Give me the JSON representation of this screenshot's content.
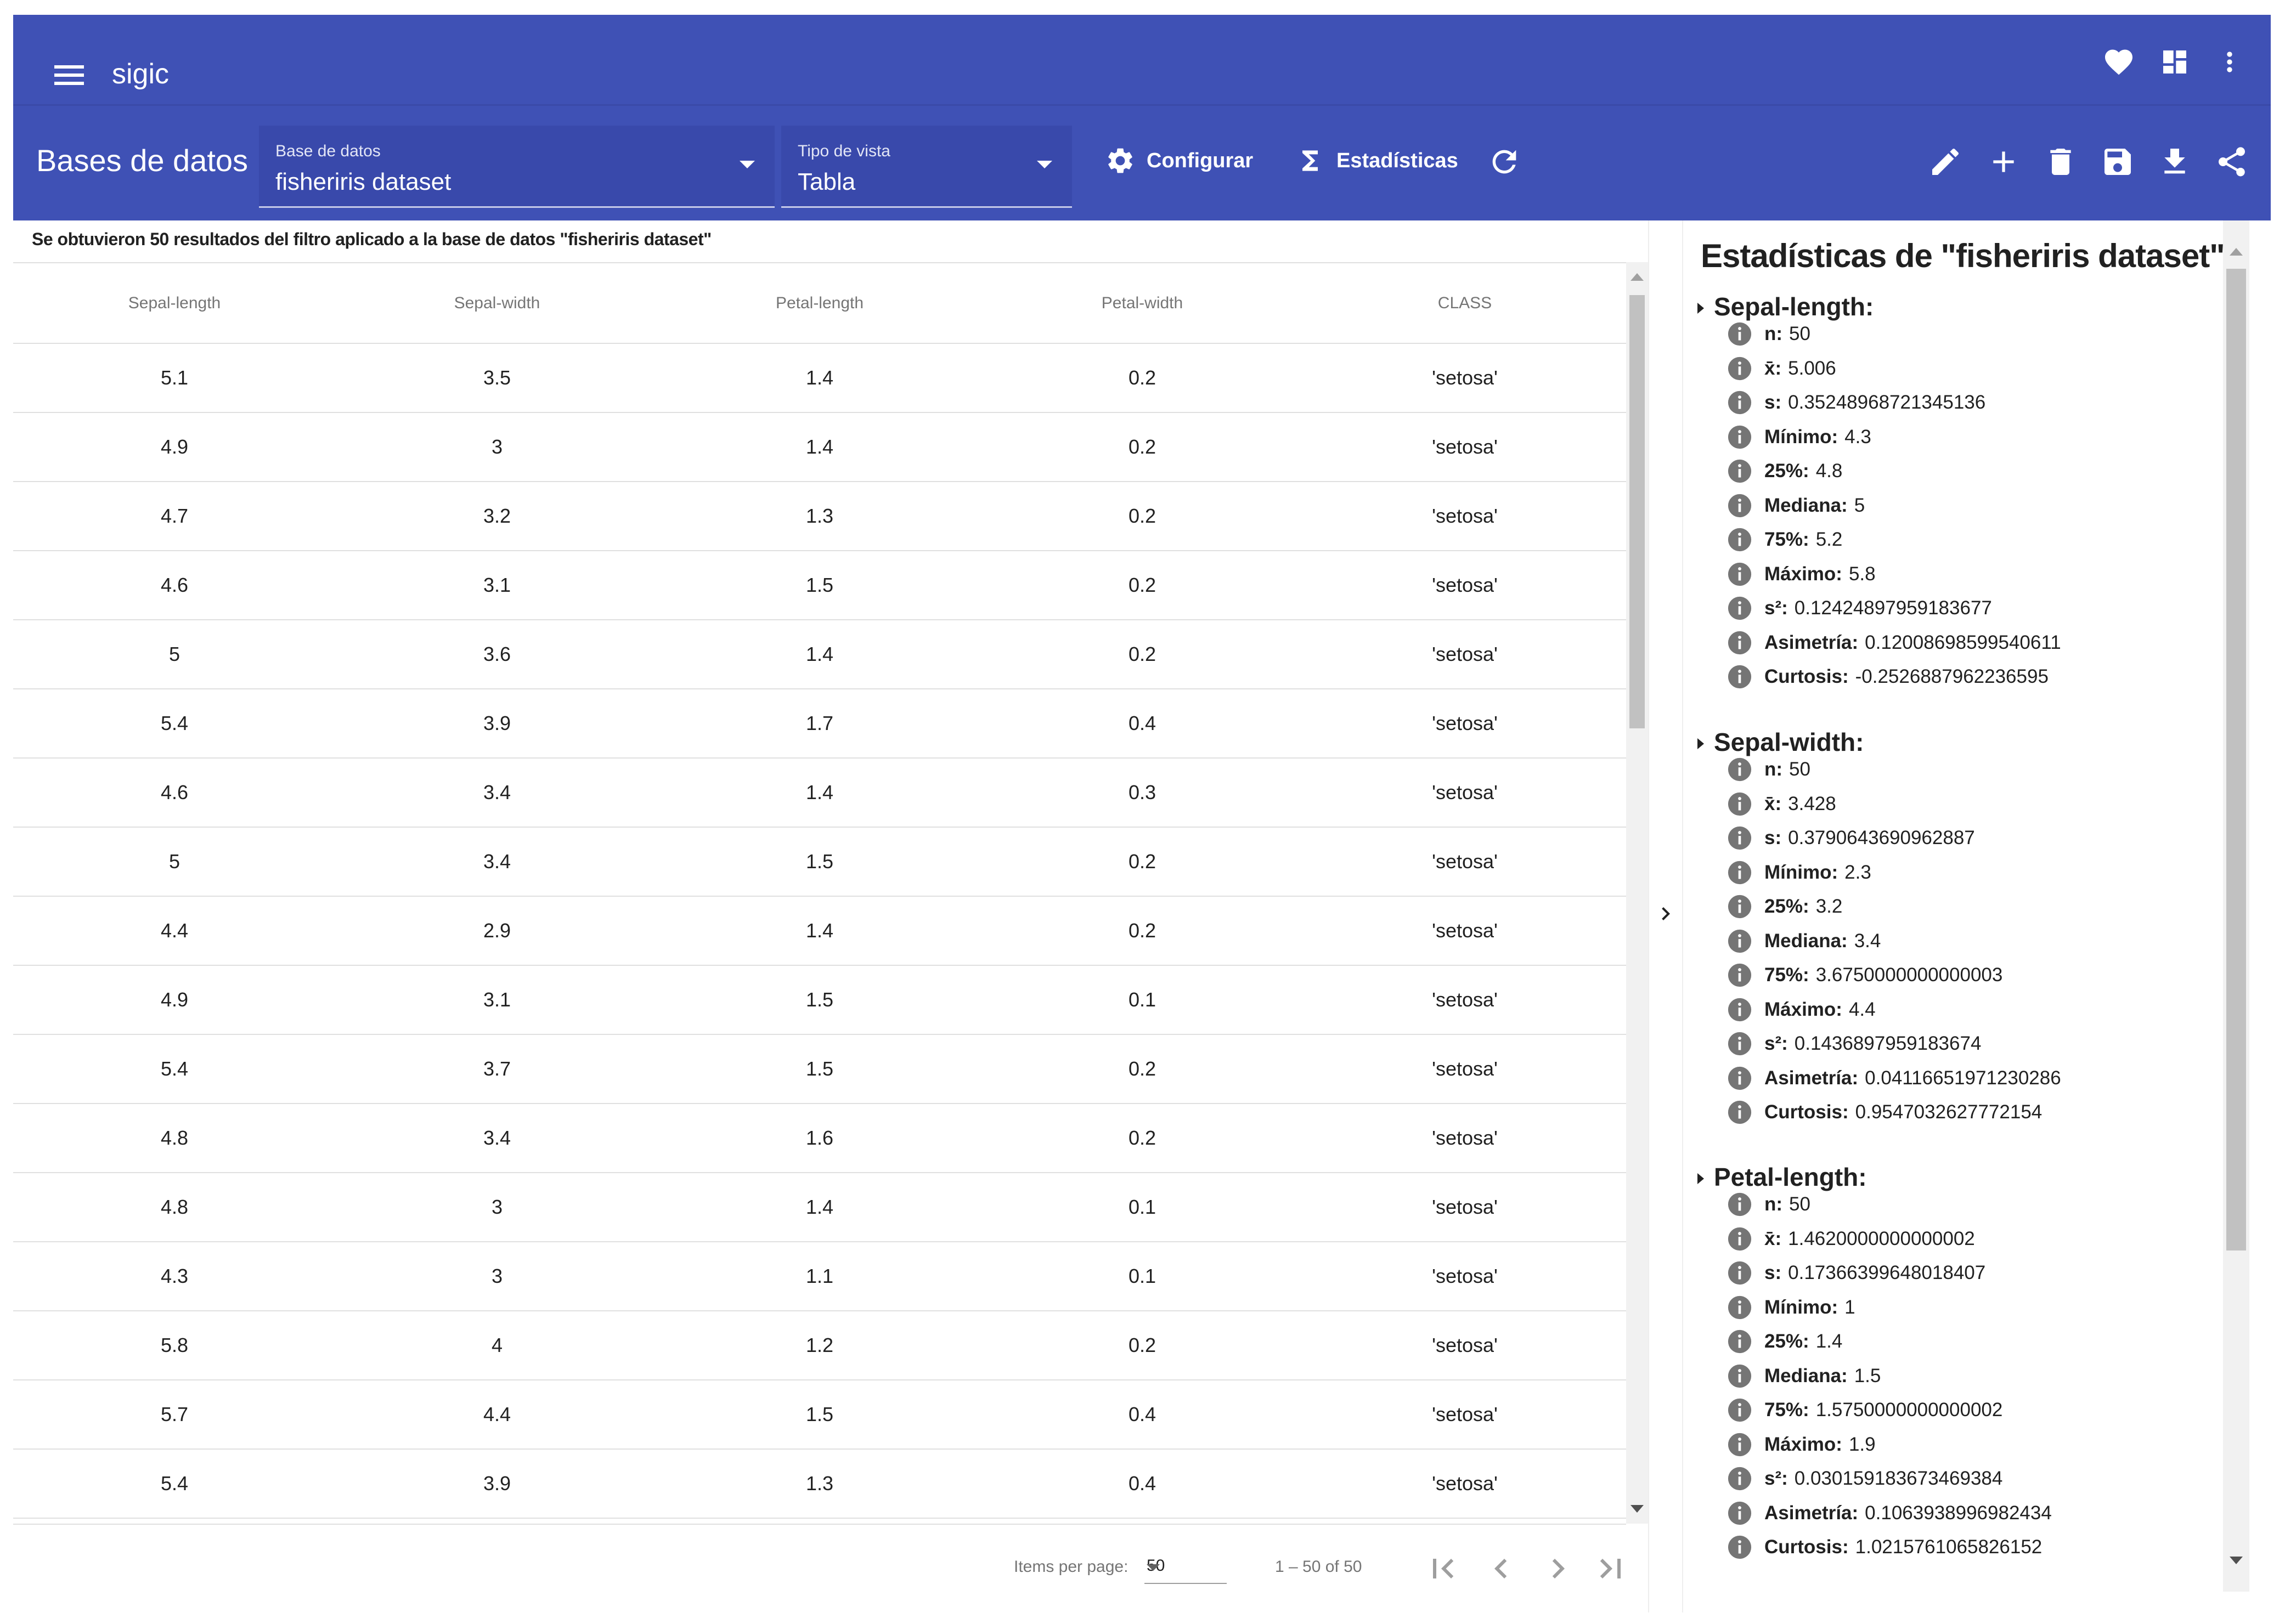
{
  "app": {
    "title": "sigic"
  },
  "toolbar": {
    "title": "Bases de datos",
    "database_select": {
      "label": "Base de datos",
      "value": "fisheriris dataset"
    },
    "view_select": {
      "label": "Tipo de vista",
      "value": "Tabla"
    },
    "configure_label": "Configurar",
    "statistics_label": "Estadísticas"
  },
  "results": {
    "info": "Se obtuvieron 50 resultados del filtro aplicado a la base de datos \"fisheriris dataset\""
  },
  "table": {
    "columns": [
      "Sepal-length",
      "Sepal-width",
      "Petal-length",
      "Petal-width",
      "CLASS"
    ],
    "rows": [
      [
        "5.1",
        "3.5",
        "1.4",
        "0.2",
        "'setosa'"
      ],
      [
        "4.9",
        "3",
        "1.4",
        "0.2",
        "'setosa'"
      ],
      [
        "4.7",
        "3.2",
        "1.3",
        "0.2",
        "'setosa'"
      ],
      [
        "4.6",
        "3.1",
        "1.5",
        "0.2",
        "'setosa'"
      ],
      [
        "5",
        "3.6",
        "1.4",
        "0.2",
        "'setosa'"
      ],
      [
        "5.4",
        "3.9",
        "1.7",
        "0.4",
        "'setosa'"
      ],
      [
        "4.6",
        "3.4",
        "1.4",
        "0.3",
        "'setosa'"
      ],
      [
        "5",
        "3.4",
        "1.5",
        "0.2",
        "'setosa'"
      ],
      [
        "4.4",
        "2.9",
        "1.4",
        "0.2",
        "'setosa'"
      ],
      [
        "4.9",
        "3.1",
        "1.5",
        "0.1",
        "'setosa'"
      ],
      [
        "5.4",
        "3.7",
        "1.5",
        "0.2",
        "'setosa'"
      ],
      [
        "4.8",
        "3.4",
        "1.6",
        "0.2",
        "'setosa'"
      ],
      [
        "4.8",
        "3",
        "1.4",
        "0.1",
        "'setosa'"
      ],
      [
        "4.3",
        "3",
        "1.1",
        "0.1",
        "'setosa'"
      ],
      [
        "5.8",
        "4",
        "1.2",
        "0.2",
        "'setosa'"
      ],
      [
        "5.7",
        "4.4",
        "1.5",
        "0.4",
        "'setosa'"
      ],
      [
        "5.4",
        "3.9",
        "1.3",
        "0.4",
        "'setosa'"
      ]
    ]
  },
  "paginator": {
    "items_per_page_label": "Items per page:",
    "page_size": "50",
    "range": "1 – 50 of 50"
  },
  "stats": {
    "title": "Estadísticas de \"fisheriris dataset\"",
    "sections": [
      {
        "name": "Sepal-length:",
        "items": [
          {
            "k": "n:",
            "v": "50"
          },
          {
            "k": "x̄:",
            "v": "5.006"
          },
          {
            "k": "s:",
            "v": "0.35248968721345136"
          },
          {
            "k": "Mínimo:",
            "v": "4.3"
          },
          {
            "k": "25%:",
            "v": "4.8"
          },
          {
            "k": "Mediana:",
            "v": "5"
          },
          {
            "k": "75%:",
            "v": "5.2"
          },
          {
            "k": "Máximo:",
            "v": "5.8"
          },
          {
            "k": "s²:",
            "v": "0.12424897959183677"
          },
          {
            "k": "Asimetría:",
            "v": "0.12008698599540611"
          },
          {
            "k": "Curtosis:",
            "v": "-0.2526887962236595"
          }
        ]
      },
      {
        "name": "Sepal-width:",
        "items": [
          {
            "k": "n:",
            "v": "50"
          },
          {
            "k": "x̄:",
            "v": "3.428"
          },
          {
            "k": "s:",
            "v": "0.3790643690962887"
          },
          {
            "k": "Mínimo:",
            "v": "2.3"
          },
          {
            "k": "25%:",
            "v": "3.2"
          },
          {
            "k": "Mediana:",
            "v": "3.4"
          },
          {
            "k": "75%:",
            "v": "3.6750000000000003"
          },
          {
            "k": "Máximo:",
            "v": "4.4"
          },
          {
            "k": "s²:",
            "v": "0.1436897959183674"
          },
          {
            "k": "Asimetría:",
            "v": "0.04116651971230286"
          },
          {
            "k": "Curtosis:",
            "v": "0.9547032627772154"
          }
        ]
      },
      {
        "name": "Petal-length:",
        "items": [
          {
            "k": "n:",
            "v": "50"
          },
          {
            "k": "x̄:",
            "v": "1.4620000000000002"
          },
          {
            "k": "s:",
            "v": "0.17366399648018407"
          },
          {
            "k": "Mínimo:",
            "v": "1"
          },
          {
            "k": "25%:",
            "v": "1.4"
          },
          {
            "k": "Mediana:",
            "v": "1.5"
          },
          {
            "k": "75%:",
            "v": "1.5750000000000002"
          },
          {
            "k": "Máximo:",
            "v": "1.9"
          },
          {
            "k": "s²:",
            "v": "0.030159183673469384"
          },
          {
            "k": "Asimetría:",
            "v": "0.1063938996982434"
          },
          {
            "k": "Curtosis:",
            "v": "1.0215761065826152"
          }
        ]
      }
    ]
  }
}
